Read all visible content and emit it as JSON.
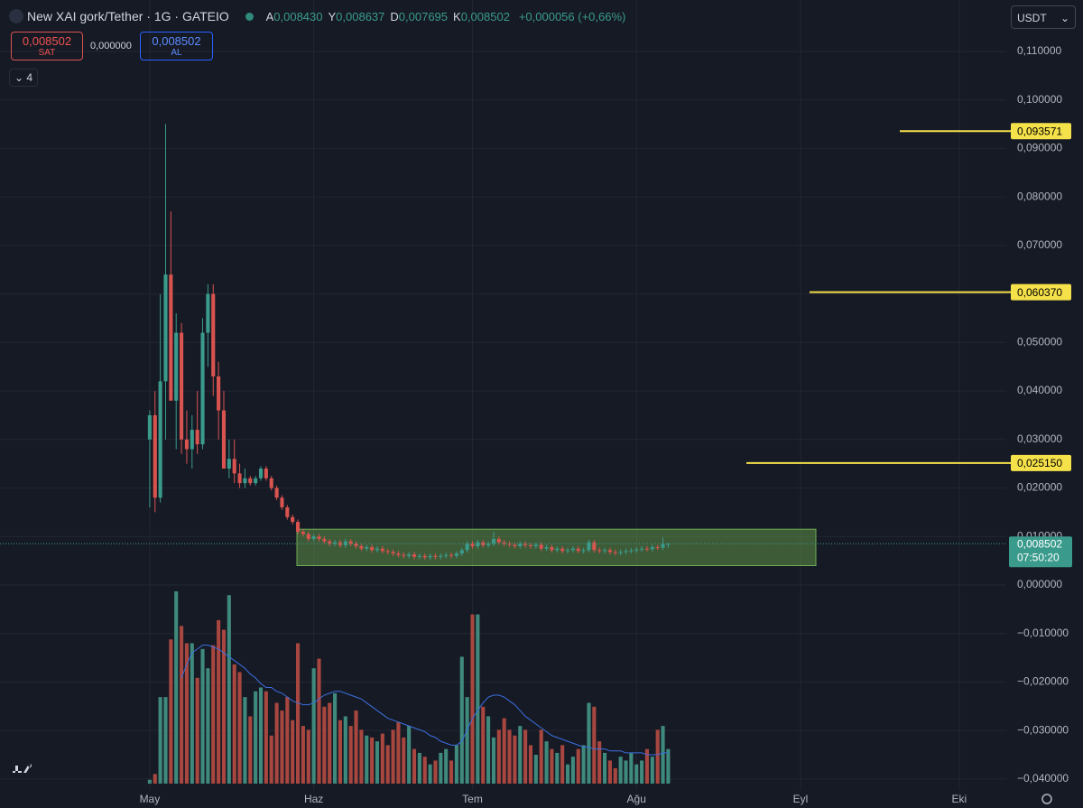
{
  "header": {
    "symbol": "New XAI gork/Tether · 1G · GATEIO",
    "quote": [
      {
        "key": "A",
        "value": "0,008430"
      },
      {
        "key": "Y",
        "value": "0,008637"
      },
      {
        "key": "D",
        "value": "0,007695"
      },
      {
        "key": "K",
        "value": "0,008502"
      }
    ],
    "change": "+0,000056 (+0,66%)",
    "sell": {
      "price": "0,008502",
      "label": "SAT"
    },
    "spread": "0,000000",
    "buy": {
      "price": "0,008502",
      "label": "AL"
    },
    "indicators": "4",
    "currency": "USDT"
  },
  "chart_data": {
    "type": "candlestick",
    "up_color": "#3a9b8c",
    "down_color": "#d9534f",
    "volume_up_color": "#3f8a7c",
    "volume_down_color": "#a8473f",
    "ma_color": "#3b6fe0",
    "xlim": [
      -28.3,
      161.9
    ],
    "xticks": [
      {
        "value": 0,
        "label": "May"
      },
      {
        "value": 31,
        "label": "Haz"
      },
      {
        "value": 61,
        "label": "Tem"
      },
      {
        "value": 92,
        "label": "Ağu"
      },
      {
        "value": 123,
        "label": "Eyl"
      },
      {
        "value": 153,
        "label": "Eki"
      }
    ],
    "ylim": [
      -0.04225,
      0.1206
    ],
    "yticks": [
      {
        "value": 0.11,
        "label": "0,110000"
      },
      {
        "value": 0.1,
        "label": "0,100000"
      },
      {
        "value": 0.09,
        "label": "0,090000"
      },
      {
        "value": 0.08,
        "label": "0,080000"
      },
      {
        "value": 0.07,
        "label": "0,070000"
      },
      {
        "value": 0.06,
        "label": "0,060000"
      },
      {
        "value": 0.05,
        "label": "0,050000"
      },
      {
        "value": 0.04,
        "label": "0,040000"
      },
      {
        "value": 0.03,
        "label": "0,030000"
      },
      {
        "value": 0.02,
        "label": "0,020000"
      },
      {
        "value": 0.01,
        "label": "0,010000"
      },
      {
        "value": 0,
        "label": "0,000000"
      },
      {
        "value": -0.01,
        "label": "−0,010000"
      },
      {
        "value": -0.02,
        "label": "−0,020000"
      },
      {
        "value": -0.03,
        "label": "−0,030000"
      },
      {
        "value": -0.04,
        "label": "−0,040000"
      }
    ],
    "grid": true,
    "ohlc": [
      [
        0.03,
        0.036,
        0.016,
        0.035
      ],
      [
        0.035,
        0.04,
        0.015,
        0.018
      ],
      [
        0.018,
        0.06,
        0.017,
        0.042
      ],
      [
        0.042,
        0.095,
        0.03,
        0.064
      ],
      [
        0.064,
        0.077,
        0.038,
        0.038
      ],
      [
        0.038,
        0.056,
        0.028,
        0.052
      ],
      [
        0.052,
        0.054,
        0.027,
        0.03
      ],
      [
        0.03,
        0.036,
        0.025,
        0.028
      ],
      [
        0.028,
        0.035,
        0.024,
        0.032
      ],
      [
        0.032,
        0.04,
        0.027,
        0.029
      ],
      [
        0.029,
        0.055,
        0.028,
        0.052
      ],
      [
        0.052,
        0.062,
        0.045,
        0.06
      ],
      [
        0.06,
        0.062,
        0.039,
        0.043
      ],
      [
        0.043,
        0.046,
        0.03,
        0.036
      ],
      [
        0.036,
        0.04,
        0.024,
        0.024
      ],
      [
        0.024,
        0.03,
        0.022,
        0.026
      ],
      [
        0.026,
        0.03,
        0.021,
        0.023
      ],
      [
        0.023,
        0.025,
        0.02,
        0.021
      ],
      [
        0.021,
        0.024,
        0.02,
        0.022
      ],
      [
        0.022,
        0.0225,
        0.0205,
        0.021
      ],
      [
        0.021,
        0.0225,
        0.0205,
        0.022
      ],
      [
        0.022,
        0.0245,
        0.0215,
        0.024
      ],
      [
        0.024,
        0.0245,
        0.0215,
        0.022
      ],
      [
        0.022,
        0.0225,
        0.0195,
        0.02
      ],
      [
        0.02,
        0.0205,
        0.0175,
        0.018
      ],
      [
        0.018,
        0.0185,
        0.0155,
        0.016
      ],
      [
        0.016,
        0.0165,
        0.0135,
        0.014
      ],
      [
        0.014,
        0.0145,
        0.0125,
        0.013
      ],
      [
        0.013,
        0.0135,
        0.0105,
        0.011
      ],
      [
        0.011,
        0.0115,
        0.01,
        0.0105
      ],
      [
        0.0105,
        0.011,
        0.009,
        0.0095
      ],
      [
        0.0095,
        0.0105,
        0.009,
        0.01
      ],
      [
        0.01,
        0.0105,
        0.009,
        0.0095
      ],
      [
        0.0095,
        0.01,
        0.0085,
        0.009
      ],
      [
        0.009,
        0.0095,
        0.008,
        0.0085
      ],
      [
        0.0085,
        0.0093,
        0.008,
        0.0088
      ],
      [
        0.0088,
        0.0093,
        0.0077,
        0.0082
      ],
      [
        0.0082,
        0.0095,
        0.0077,
        0.009
      ],
      [
        0.009,
        0.0095,
        0.008,
        0.0085
      ],
      [
        0.0085,
        0.009,
        0.0075,
        0.008
      ],
      [
        0.008,
        0.0085,
        0.007,
        0.0075
      ],
      [
        0.0075,
        0.0083,
        0.007,
        0.0078
      ],
      [
        0.0078,
        0.0083,
        0.0067,
        0.0072
      ],
      [
        0.0072,
        0.008,
        0.0067,
        0.0075
      ],
      [
        0.0075,
        0.008,
        0.0065,
        0.007
      ],
      [
        0.007,
        0.0075,
        0.0063,
        0.0068
      ],
      [
        0.0068,
        0.0073,
        0.006,
        0.0065
      ],
      [
        0.0065,
        0.007,
        0.0057,
        0.0062
      ],
      [
        0.0062,
        0.0067,
        0.0055,
        0.006
      ],
      [
        0.006,
        0.0068,
        0.0055,
        0.0063
      ],
      [
        0.0063,
        0.0068,
        0.0053,
        0.0058
      ],
      [
        0.0058,
        0.0065,
        0.0053,
        0.006
      ],
      [
        0.006,
        0.0065,
        0.0052,
        0.0057
      ],
      [
        0.0057,
        0.0065,
        0.0052,
        0.006
      ],
      [
        0.006,
        0.0065,
        0.0053,
        0.0058
      ],
      [
        0.0058,
        0.0065,
        0.0053,
        0.006
      ],
      [
        0.006,
        0.0067,
        0.0055,
        0.0062
      ],
      [
        0.0062,
        0.0067,
        0.0055,
        0.006
      ],
      [
        0.006,
        0.007,
        0.0055,
        0.0065
      ],
      [
        0.0065,
        0.0077,
        0.006,
        0.0072
      ],
      [
        0.0072,
        0.009,
        0.0067,
        0.0085
      ],
      [
        0.0085,
        0.009,
        0.0075,
        0.008
      ],
      [
        0.008,
        0.0093,
        0.0075,
        0.0088
      ],
      [
        0.0088,
        0.0093,
        0.0077,
        0.0082
      ],
      [
        0.0082,
        0.009,
        0.0077,
        0.0085
      ],
      [
        0.0085,
        0.011,
        0.008,
        0.0095
      ],
      [
        0.0095,
        0.01,
        0.0083,
        0.0088
      ],
      [
        0.0088,
        0.0093,
        0.008,
        0.0085
      ],
      [
        0.0085,
        0.009,
        0.0078,
        0.0083
      ],
      [
        0.0083,
        0.0088,
        0.0075,
        0.008
      ],
      [
        0.008,
        0.009,
        0.0075,
        0.0085
      ],
      [
        0.0085,
        0.009,
        0.0077,
        0.0082
      ],
      [
        0.0082,
        0.0087,
        0.0075,
        0.008
      ],
      [
        0.008,
        0.0088,
        0.0075,
        0.0083
      ],
      [
        0.0083,
        0.0088,
        0.007,
        0.0075
      ],
      [
        0.0075,
        0.0083,
        0.007,
        0.0078
      ],
      [
        0.0078,
        0.0083,
        0.0067,
        0.0072
      ],
      [
        0.0072,
        0.008,
        0.0067,
        0.0075
      ],
      [
        0.0075,
        0.008,
        0.0065,
        0.007
      ],
      [
        0.007,
        0.0077,
        0.0065,
        0.0072
      ],
      [
        0.0072,
        0.008,
        0.0067,
        0.0075
      ],
      [
        0.0075,
        0.008,
        0.0065,
        0.007
      ],
      [
        0.007,
        0.0077,
        0.0065,
        0.0072
      ],
      [
        0.0072,
        0.0093,
        0.0067,
        0.0088
      ],
      [
        0.0088,
        0.0093,
        0.0067,
        0.0072
      ],
      [
        0.0072,
        0.0077,
        0.0065,
        0.007
      ],
      [
        0.007,
        0.0077,
        0.0065,
        0.0072
      ],
      [
        0.0072,
        0.0077,
        0.0063,
        0.0068
      ],
      [
        0.0068,
        0.0073,
        0.0061,
        0.0066
      ],
      [
        0.0066,
        0.0073,
        0.0061,
        0.0068
      ],
      [
        0.0068,
        0.0075,
        0.0063,
        0.007
      ],
      [
        0.007,
        0.0076,
        0.0065,
        0.0071
      ],
      [
        0.0071,
        0.0078,
        0.0066,
        0.0073
      ],
      [
        0.0073,
        0.008,
        0.0068,
        0.0075
      ],
      [
        0.0075,
        0.008,
        0.0069,
        0.0074
      ],
      [
        0.0074,
        0.0083,
        0.0069,
        0.0078
      ],
      [
        0.0078,
        0.0083,
        0.0072,
        0.0077
      ],
      [
        0.0077,
        0.0098,
        0.0072,
        0.0084
      ],
      [
        0.00843,
        0.008637,
        0.007695,
        0.008502
      ]
    ],
    "volume": [
      2,
      5,
      45,
      45,
      75,
      100,
      82,
      73,
      73,
      55,
      70,
      60,
      72,
      85,
      80,
      98,
      62,
      58,
      45,
      35,
      48,
      50,
      48,
      25,
      42,
      38,
      45,
      33,
      73,
      30,
      28,
      60,
      65,
      40,
      42,
      47,
      33,
      35,
      30,
      38,
      28,
      25,
      24,
      22,
      26,
      20,
      28,
      32,
      24,
      30,
      18,
      16,
      14,
      10,
      12,
      16,
      18,
      12,
      20,
      66,
      45,
      88,
      88,
      40,
      35,
      24,
      28,
      34,
      28,
      25,
      30,
      28,
      20,
      15,
      28,
      22,
      18,
      16,
      20,
      10,
      14,
      18,
      20,
      42,
      40,
      22,
      16,
      12,
      8,
      14,
      12,
      16,
      10,
      12,
      18,
      14,
      28,
      30,
      18
    ],
    "volume_ma": [
      null,
      null,
      null,
      null,
      null,
      null,
      55,
      62,
      68,
      70,
      72,
      72,
      71,
      70,
      68,
      66,
      64,
      62,
      60,
      57,
      55,
      52,
      50,
      50,
      48,
      47,
      45,
      43,
      42,
      41,
      41,
      42,
      44,
      46,
      47,
      48,
      48,
      47,
      46,
      45,
      44,
      42,
      40,
      38,
      36,
      34,
      33,
      32,
      31,
      30,
      29,
      28,
      27,
      25,
      24,
      22,
      21,
      20,
      20,
      22,
      28,
      34,
      38,
      42,
      45,
      46,
      46,
      45,
      43,
      41,
      38,
      35,
      33,
      31,
      29,
      27,
      25,
      24,
      23,
      22,
      21,
      20,
      19,
      19,
      18,
      18,
      18,
      17,
      17,
      17,
      16,
      16,
      16,
      16,
      15,
      15,
      15,
      16,
      16
    ],
    "levels": [
      {
        "value": 0.093571,
        "label": "0,093571"
      },
      {
        "value": 0.06037,
        "label": "0,060370"
      },
      {
        "value": 0.02515,
        "label": "0,025150"
      }
    ],
    "zone": {
      "top": 0.0115,
      "bottom": 0.004
    },
    "last_price": {
      "value": 0.008502,
      "label": "0,008502"
    },
    "countdown": "07:50:20"
  }
}
